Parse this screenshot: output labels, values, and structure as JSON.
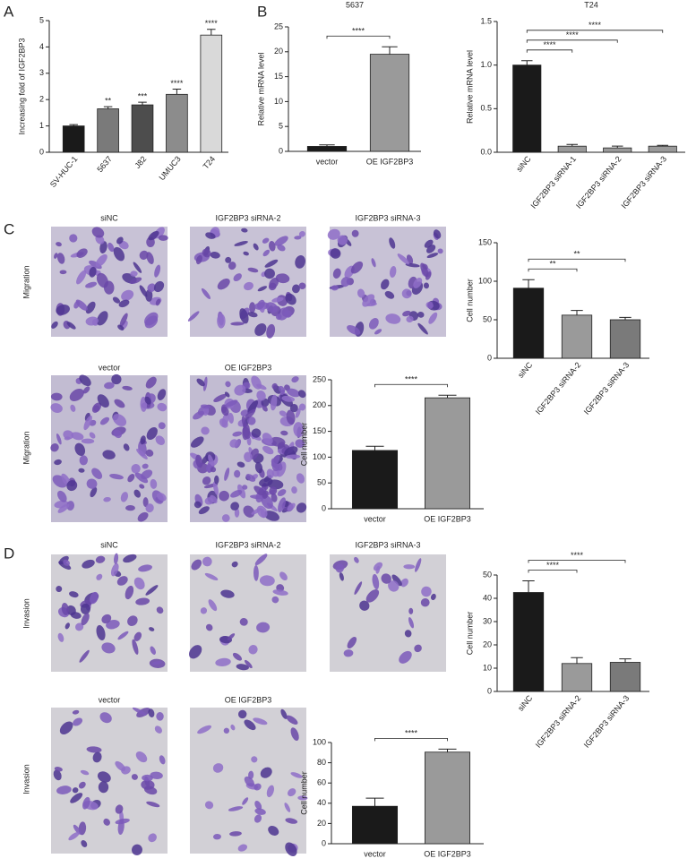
{
  "panel_labels": [
    "A",
    "B",
    "C",
    "D"
  ],
  "image_rows": [
    {
      "label": "Migration",
      "captions": [
        "siNC",
        "IGF2BP3 siRNA-2",
        "IGF2BP3 siRNA-3"
      ]
    },
    {
      "label": "Migration",
      "captions": [
        "vector",
        "OE IGF2BP3"
      ]
    },
    {
      "label": "Invasion",
      "captions": [
        "siNC",
        "IGF2BP3 siRNA-2",
        "IGF2BP3 siRNA-3"
      ]
    },
    {
      "label": "Invasion",
      "captions": [
        "vector",
        "OE IGF2BP3"
      ]
    }
  ],
  "chart_data": [
    {
      "type": "bar",
      "y_label": "Increasing fold of IGF2BP3",
      "categories": [
        "SV-HUC-1",
        "5637",
        "J82",
        "UMUC3",
        "T24"
      ],
      "values": [
        1.0,
        1.65,
        1.8,
        2.2,
        4.45
      ],
      "errors": [
        0.05,
        0.08,
        0.1,
        0.2,
        0.22
      ],
      "significance": [
        null,
        "**",
        "***",
        "****",
        "****"
      ],
      "colors": [
        "#1a1a1a",
        "#7a7a7a",
        "#4d4d4d",
        "#8c8c8c",
        "#d9d9d9"
      ],
      "ylim": [
        0,
        5
      ],
      "yticks": [
        0,
        1,
        2,
        3,
        4,
        5
      ]
    },
    {
      "type": "bar",
      "title": "5637",
      "y_label": "Relative mRNA level",
      "categories": [
        "vector",
        "OE IGF2BP3"
      ],
      "values": [
        1.0,
        19.5
      ],
      "errors": [
        0.3,
        1.5
      ],
      "colors": [
        "#1a1a1a",
        "#9a9a9a"
      ],
      "annotations": [
        {
          "text": "****",
          "between": [
            "vector",
            "OE IGF2BP3"
          ]
        }
      ],
      "ylim": [
        0,
        25
      ],
      "yticks": [
        0,
        5,
        10,
        15,
        20,
        25
      ]
    },
    {
      "type": "bar",
      "title": "T24",
      "y_label": "Relative mRNA level",
      "categories": [
        "siNC",
        "IGF2BP3 siRNA-1",
        "IGF2BP3 siRNA-2",
        "IGF2BP3 siRNA-3"
      ],
      "values": [
        1.0,
        0.07,
        0.05,
        0.07
      ],
      "errors": [
        0.05,
        0.02,
        0.02,
        0.01
      ],
      "colors": [
        "#1a1a1a",
        "#9a9a9a",
        "#9a9a9a",
        "#9a9a9a"
      ],
      "annotations": [
        {
          "text": "****",
          "between": [
            "siNC",
            "IGF2BP3 siRNA-1"
          ]
        },
        {
          "text": "****",
          "between": [
            "siNC",
            "IGF2BP3 siRNA-2"
          ]
        },
        {
          "text": "****",
          "between": [
            "siNC",
            "IGF2BP3 siRNA-3"
          ]
        }
      ],
      "ylim": [
        0,
        1.5
      ],
      "yticks": [
        {
          "value": 0,
          "label": "0.0"
        },
        {
          "value": 0.5,
          "label": "0.5"
        },
        {
          "value": 1,
          "label": "1.0"
        },
        1.5
      ]
    },
    {
      "type": "bar",
      "y_label": "Cell number",
      "categories": [
        "siNC",
        "IGF2BP3 siRNA-2",
        "IGF2BP3 siRNA-3"
      ],
      "values": [
        91,
        56,
        50
      ],
      "errors": [
        11,
        6,
        3
      ],
      "colors": [
        "#1a1a1a",
        "#9a9a9a",
        "#7a7a7a"
      ],
      "annotations": [
        {
          "text": "**",
          "between": [
            "siNC",
            "IGF2BP3 siRNA-2"
          ]
        },
        {
          "text": "**",
          "between": [
            "siNC",
            "IGF2BP3 siRNA-3"
          ]
        }
      ],
      "ylim": [
        0,
        150
      ],
      "yticks": [
        0,
        50,
        100,
        150
      ]
    },
    {
      "type": "bar",
      "y_label": "Cell number",
      "categories": [
        "vector",
        "OE IGF2BP3"
      ],
      "values": [
        113,
        215
      ],
      "errors": [
        8,
        5
      ],
      "colors": [
        "#1a1a1a",
        "#9a9a9a"
      ],
      "annotations": [
        {
          "text": "****",
          "between": [
            "vector",
            "OE IGF2BP3"
          ]
        }
      ],
      "ylim": [
        0,
        250
      ],
      "yticks": [
        0,
        50,
        100,
        150,
        200,
        250
      ]
    },
    {
      "type": "bar",
      "y_label": "Cell number",
      "categories": [
        "siNC",
        "IGF2BP3 siRNA-2",
        "IGF2BP3 siRNA-3"
      ],
      "values": [
        42.5,
        12,
        12.5
      ],
      "errors": [
        5,
        2.5,
        1.5
      ],
      "colors": [
        "#1a1a1a",
        "#9a9a9a",
        "#7a7a7a"
      ],
      "annotations": [
        {
          "text": "****",
          "between": [
            "siNC",
            "IGF2BP3 siRNA-2"
          ]
        },
        {
          "text": "****",
          "between": [
            "siNC",
            "IGF2BP3 siRNA-3"
          ]
        }
      ],
      "ylim": [
        0,
        50
      ],
      "yticks": [
        0,
        10,
        20,
        30,
        40,
        50
      ]
    },
    {
      "type": "bar",
      "y_label": "Cell number",
      "categories": [
        "vector",
        "OE IGF2BP3"
      ],
      "values": [
        37,
        90.5
      ],
      "errors": [
        8,
        3
      ],
      "colors": [
        "#1a1a1a",
        "#9a9a9a"
      ],
      "annotations": [
        {
          "text": "****",
          "between": [
            "vector",
            "OE IGF2BP3"
          ]
        }
      ],
      "ylim": [
        0,
        100
      ],
      "yticks": [
        0,
        20,
        40,
        60,
        80,
        100
      ]
    }
  ]
}
